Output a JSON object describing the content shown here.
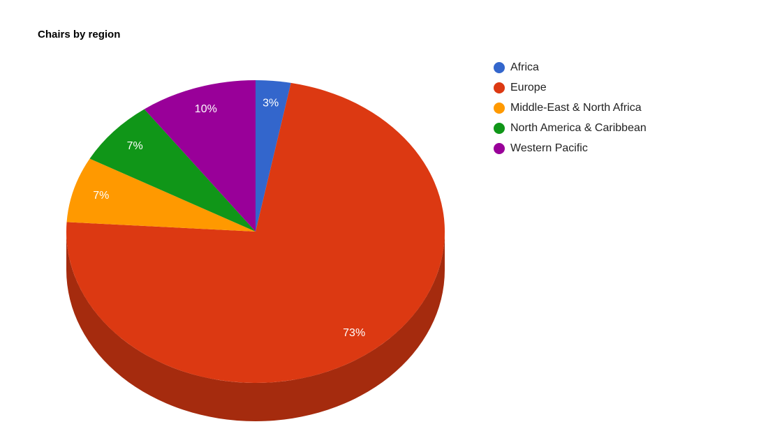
{
  "chart_data": {
    "type": "pie",
    "title": "Chairs by region",
    "categories": [
      "Africa",
      "Europe",
      "Middle-East & North Africa",
      "North America & Caribbean",
      "Western Pacific"
    ],
    "values": [
      3,
      73,
      7,
      7,
      10
    ],
    "value_labels": [
      "3%",
      "73%",
      "7%",
      "7%",
      "10%"
    ],
    "colors": [
      "#3366cc",
      "#dc3912",
      "#ff9900",
      "#109618",
      "#990099"
    ],
    "legend": "right"
  }
}
